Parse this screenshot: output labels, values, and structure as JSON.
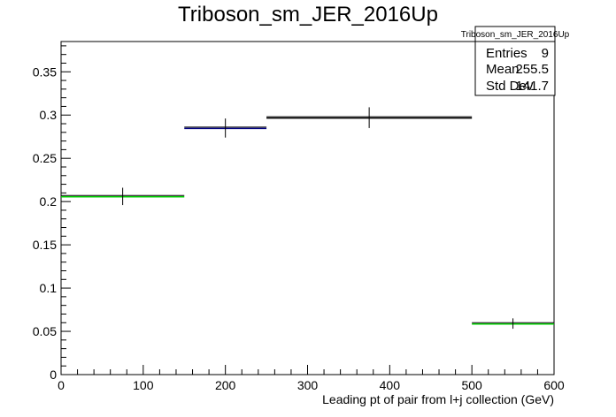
{
  "chart_data": {
    "type": "histogram",
    "title": "Triboson_sm_JER_2016Up",
    "xlabel": "Leading pt of pair from l+j collection (GeV)",
    "ylabel": "",
    "xlim": [
      0,
      600
    ],
    "ylim": [
      0,
      0.385
    ],
    "x_ticks": [
      0,
      100,
      200,
      300,
      400,
      500,
      600
    ],
    "y_ticks": [
      0,
      0.05,
      0.1,
      0.15,
      0.2,
      0.25,
      0.3,
      0.35
    ],
    "bins": [
      {
        "x_low": 0,
        "x_high": 150,
        "value": 0.206,
        "error": 0.01,
        "color": "#00cc00"
      },
      {
        "x_low": 150,
        "x_high": 250,
        "value": 0.285,
        "error": 0.011,
        "color": "#000080"
      },
      {
        "x_low": 250,
        "x_high": 500,
        "value": 0.297,
        "error": 0.012,
        "color": "#000000"
      },
      {
        "x_low": 500,
        "x_high": 600,
        "value": 0.059,
        "error": 0.006,
        "color": "#00cc00"
      }
    ],
    "stats": {
      "name": "Triboson_sm_JER_2016Up",
      "rows": [
        {
          "label": "Entries",
          "value": "9"
        },
        {
          "label": "Mean",
          "value": "255.5"
        },
        {
          "label": "Std Dev",
          "value": "141.7"
        }
      ]
    }
  }
}
